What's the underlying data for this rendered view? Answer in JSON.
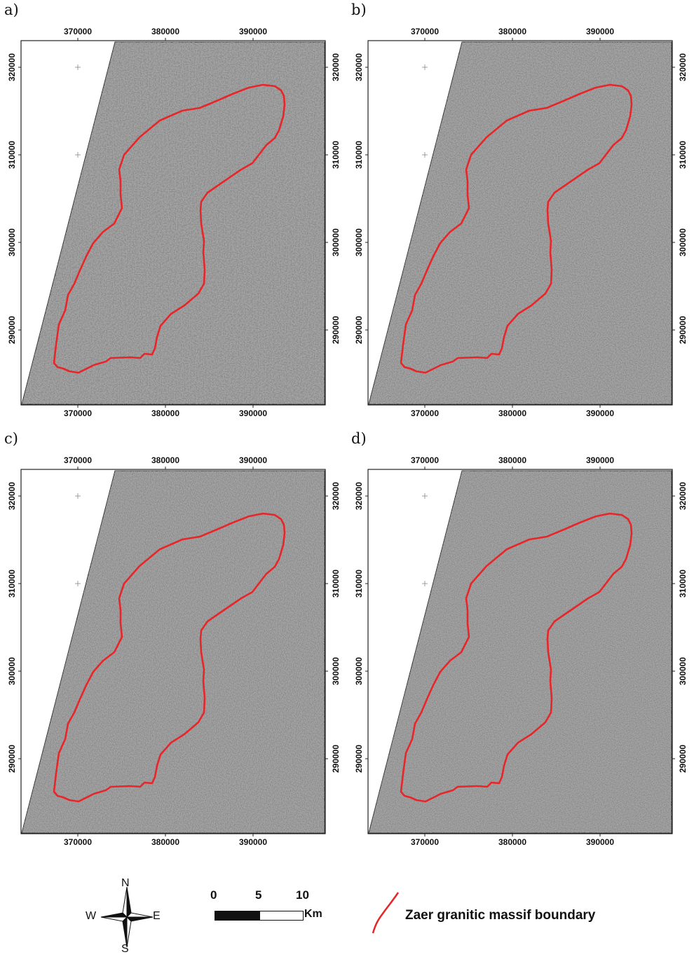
{
  "panels": [
    {
      "label": "a)",
      "variant": "a"
    },
    {
      "label": "b)",
      "variant": "b"
    },
    {
      "label": "c)",
      "variant": "c"
    },
    {
      "label": "d)",
      "variant": "d"
    }
  ],
  "x_ticks": [
    "370000",
    "380000",
    "390000"
  ],
  "y_ticks": [
    "320000",
    "310000",
    "300000",
    "290000"
  ],
  "legend": {
    "compass": {
      "n": "N",
      "s": "S",
      "e": "E",
      "w": "W"
    },
    "scale": {
      "ticks": [
        "0",
        "5",
        "10"
      ],
      "unit": "Km"
    },
    "boundary_label": "Zaer granitic massif boundary"
  },
  "colors": {
    "boundary": "#e8262a",
    "raster": "#8a8a8a"
  }
}
